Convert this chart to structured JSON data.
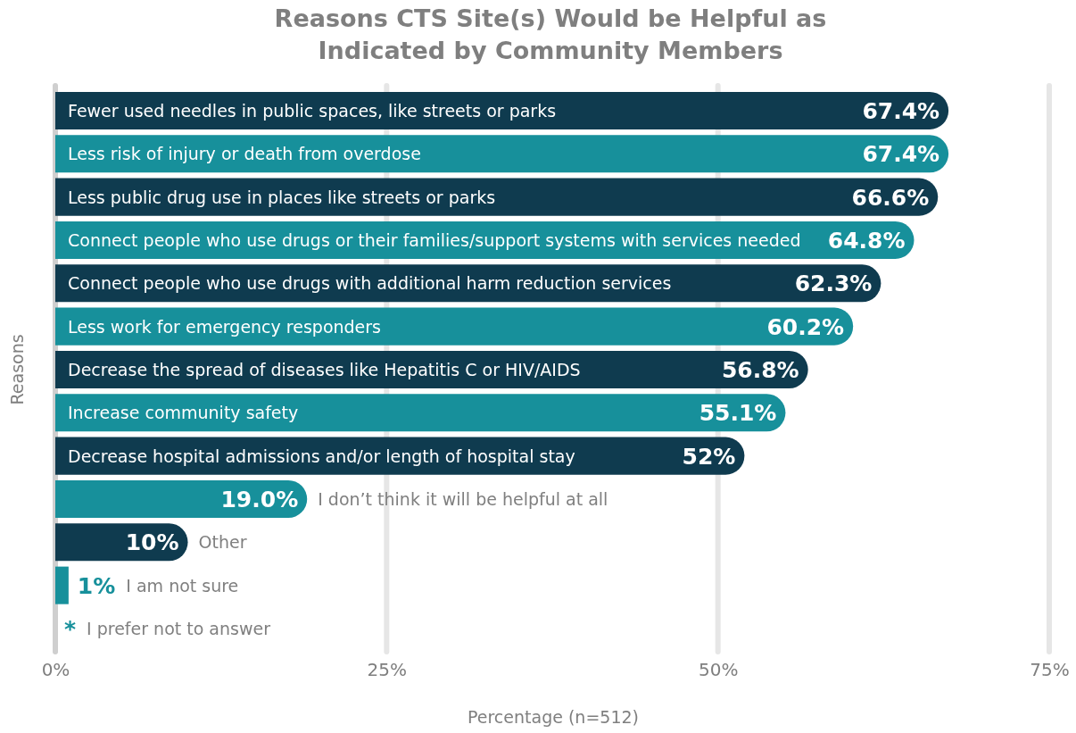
{
  "chart_data": {
    "type": "bar",
    "orientation": "horizontal",
    "title": "Reasons CTS Site(s) Would be Helpful as Indicated by Community Members",
    "xlabel": "Percentage (n=512)",
    "ylabel": "Reasons",
    "categories": [
      "Fewer used needles in public spaces, like streets or parks",
      "Less risk of injury or death from overdose",
      "Less public drug use in places like streets or parks",
      "Connect people who use drugs or their families/support systems with services needed",
      "Connect people who use drugs with additional harm reduction services",
      "Less work for emergency responders",
      "Decrease the spread of diseases like Hepatitis C or HIV/AIDS",
      "Increase community safety",
      "Decrease hospital admissions and/or length of hospital stay",
      "I don’t think it will be helpful at all",
      "Other",
      "I am not sure",
      "I prefer not to answer"
    ],
    "values": [
      67.4,
      67.4,
      66.6,
      64.8,
      62.3,
      60.2,
      56.8,
      55.1,
      52,
      19.0,
      10,
      1,
      null
    ],
    "value_labels": [
      "67.4%",
      "67.4%",
      "66.6%",
      "64.8%",
      "62.3%",
      "60.2%",
      "56.8%",
      "55.1%",
      "52%",
      "19.0%",
      "10%",
      "1%",
      "*"
    ],
    "colors": [
      "#0f3b4f",
      "#17909b",
      "#0f3b4f",
      "#17909b",
      "#0f3b4f",
      "#17909b",
      "#0f3b4f",
      "#17909b",
      "#0f3b4f",
      "#17909b",
      "#0f3b4f",
      "#17909b",
      "#0f3b4f"
    ],
    "xlim": [
      0,
      75
    ],
    "xticks": [
      {
        "value": 0,
        "label": "0%"
      },
      {
        "value": 25,
        "label": "25%"
      },
      {
        "value": 50,
        "label": "50%"
      },
      {
        "value": 75,
        "label": "75%"
      }
    ],
    "grid": "x"
  }
}
